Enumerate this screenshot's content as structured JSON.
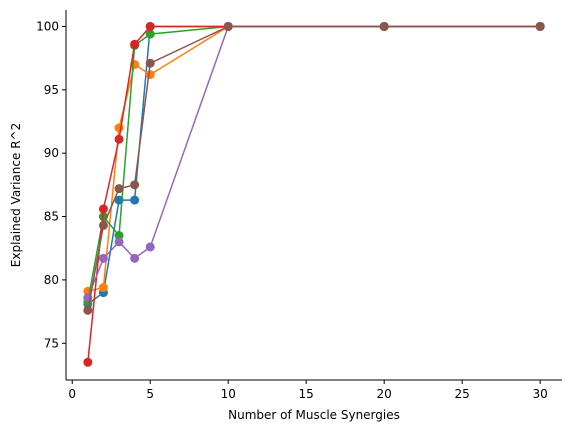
{
  "chart_data": {
    "type": "line",
    "xlabel": "Number of Muscle Synergies",
    "ylabel": "Explained Variance R^2",
    "x": [
      1,
      2,
      3,
      4,
      5,
      10,
      20,
      30
    ],
    "series": [
      {
        "color": "#1f77b4",
        "values": [
          78.1,
          79.0,
          86.3,
          86.3,
          100,
          100,
          100,
          100
        ]
      },
      {
        "color": "#ff7f0e",
        "values": [
          79.1,
          79.4,
          92.0,
          97.0,
          96.2,
          100,
          100,
          100
        ]
      },
      {
        "color": "#2ca02c",
        "values": [
          78.3,
          85.0,
          83.5,
          98.5,
          99.4,
          100,
          100,
          100
        ]
      },
      {
        "color": "#d62728",
        "values": [
          73.5,
          85.6,
          91.1,
          98.6,
          100,
          100,
          100,
          100
        ]
      },
      {
        "color": "#9467bd",
        "values": [
          78.6,
          81.7,
          83.0,
          81.7,
          82.6,
          100,
          100,
          100
        ]
      },
      {
        "color": "#8c564b",
        "values": [
          77.6,
          84.3,
          87.2,
          87.5,
          97.1,
          100,
          100,
          100
        ]
      }
    ],
    "xlim": [
      -0.4,
      31.4
    ],
    "xticks": [
      0,
      5,
      10,
      15,
      20,
      25,
      30
    ],
    "ylim": [
      72.1,
      101.3
    ],
    "yticks": [
      75,
      80,
      85,
      90,
      95,
      100
    ]
  }
}
